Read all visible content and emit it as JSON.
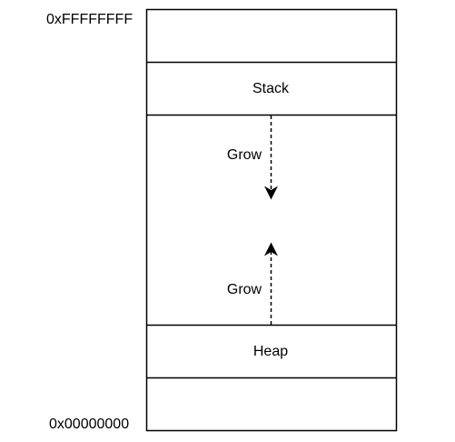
{
  "addresses": {
    "top": "0xFFFFFFFF",
    "bottom": "0x00000000"
  },
  "regions": {
    "stack": "Stack",
    "heap": "Heap"
  },
  "arrows": {
    "stack_grow": "Grow",
    "heap_grow": "Grow"
  },
  "colors": {
    "stroke": "#000000",
    "background": "#ffffff"
  }
}
